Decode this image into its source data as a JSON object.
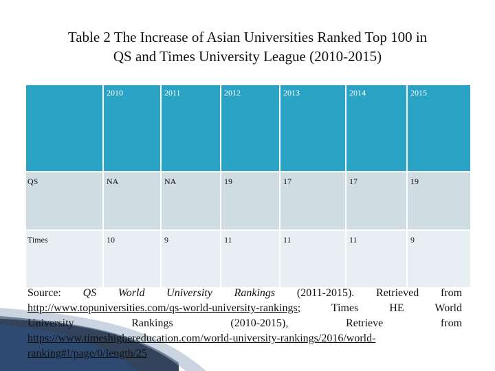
{
  "title": {
    "line1": "Table 2 The Increase of Asian Universities Ranked Top 100 in",
    "line2": "QS and Times University League (2010-2015)"
  },
  "table": {
    "headers": [
      "",
      "2010",
      "2011",
      "2012",
      "2013",
      "2014",
      "2015"
    ],
    "rows": [
      [
        "QS",
        "NA",
        "NA",
        "19",
        "17",
        "17",
        "19"
      ],
      [
        "Times",
        "10",
        "9",
        "11",
        "11",
        "11",
        "9"
      ]
    ]
  },
  "source": {
    "label": "Source:",
    "qs_name": "QS World University Rankings",
    "qs_years": "(2011-2015).",
    "retrieved": "Retrieved from",
    "qs_url": "http://www.topuniversities.com/qs-world-university-rankings",
    "semicolon": ";",
    "times_prefix": "Times HE World",
    "times_name": "University Rankings",
    "times_years": "(2010-2015),",
    "retrieve": "Retrieve from",
    "times_url_1": "https://www.timeshighereducation.com/world-university-rankings/2016/world-",
    "times_url_2": "ranking#!/page/0/length/25"
  },
  "colors": {
    "header_bg": "#2ba3c4",
    "row_a_bg": "#cfdde3",
    "row_b_bg": "#e8eff2"
  }
}
